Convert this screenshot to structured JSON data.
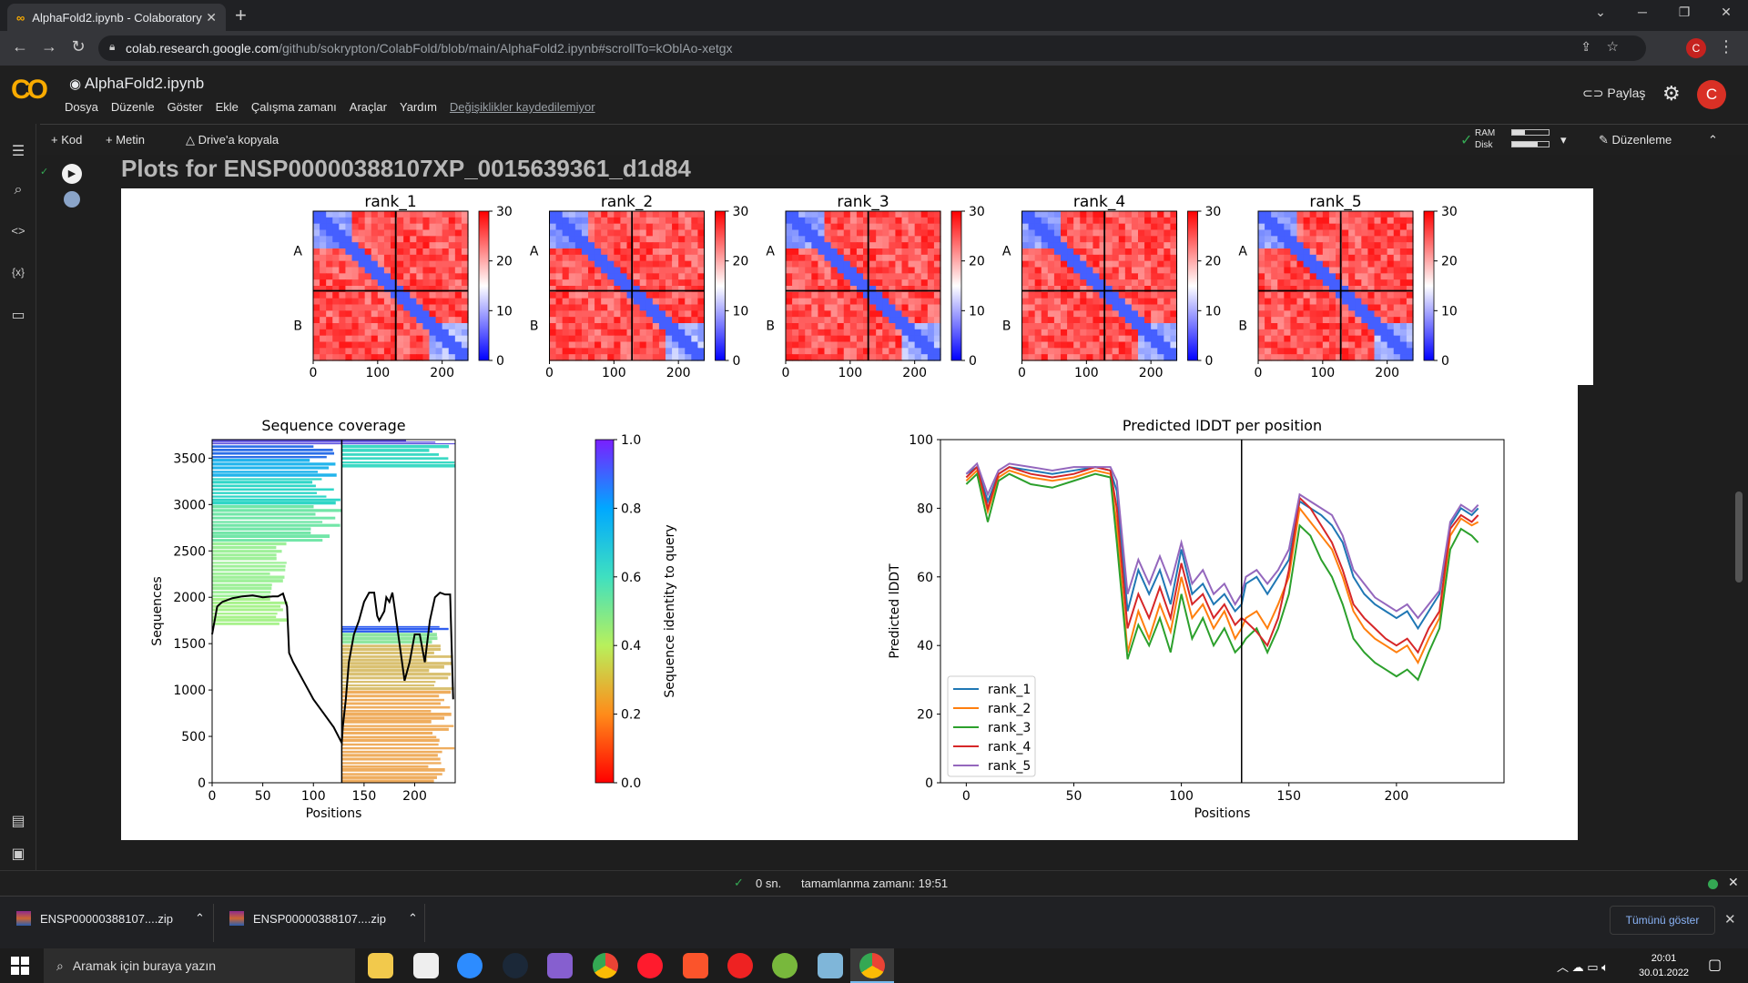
{
  "browser": {
    "tab_title": "AlphaFold2.ipynb - Colaboratory",
    "url_host": "colab.research.google.com",
    "url_path": "/github/sokrypton/ColabFold/blob/main/AlphaFold2.ipynb#scrollTo=kOblAo-xetgx",
    "profile_initial": "C"
  },
  "colab": {
    "logo": "CO",
    "notebook_title": "AlphaFold2.ipynb",
    "menu": [
      "Dosya",
      "Düzenle",
      "Göster",
      "Ekle",
      "Çalışma zamanı",
      "Araçlar",
      "Yardım"
    ],
    "unsaved_notice": "Değişiklikler kaydedilemiyor",
    "share_label": "Paylaş",
    "avatar_initial": "C"
  },
  "toolbar": {
    "add_code": "+ Kod",
    "add_text": "+ Metin",
    "copy_drive": "Drive'a kopyala",
    "ram_label": "RAM",
    "disk_label": "Disk",
    "ram_fraction": 0.35,
    "disk_fraction": 0.7,
    "edit_mode": "Düzenleme"
  },
  "cell": {
    "heading": "Plots for ENSP00000388107XP_0015639361_d1d84"
  },
  "colors": {
    "rank_1": "#1f77b4",
    "rank_2": "#ff7f0e",
    "rank_3": "#2ca02c",
    "rank_4": "#d62728",
    "rank_5": "#9467bd"
  },
  "chart_data": [
    {
      "type": "heatmap",
      "title": "rank_1",
      "ytick_labels": [
        "A",
        "B"
      ],
      "xticks": [
        0,
        100,
        200
      ],
      "colorbar_ticks": [
        0,
        10,
        20,
        30
      ],
      "colorbar_range": [
        0,
        30
      ],
      "xlim": [
        0,
        240
      ]
    },
    {
      "type": "heatmap",
      "title": "rank_2",
      "ytick_labels": [
        "A",
        "B"
      ],
      "xticks": [
        0,
        100,
        200
      ],
      "colorbar_ticks": [
        0,
        10,
        20,
        30
      ],
      "colorbar_range": [
        0,
        30
      ],
      "xlim": [
        0,
        240
      ]
    },
    {
      "type": "heatmap",
      "title": "rank_3",
      "ytick_labels": [
        "A",
        "B"
      ],
      "xticks": [
        0,
        100,
        200
      ],
      "colorbar_ticks": [
        0,
        10,
        20,
        30
      ],
      "colorbar_range": [
        0,
        30
      ],
      "xlim": [
        0,
        240
      ]
    },
    {
      "type": "heatmap",
      "title": "rank_4",
      "ytick_labels": [
        "A",
        "B"
      ],
      "xticks": [
        0,
        100,
        200
      ],
      "colorbar_ticks": [
        0,
        10,
        20,
        30
      ],
      "colorbar_range": [
        0,
        30
      ],
      "xlim": [
        0,
        240
      ]
    },
    {
      "type": "heatmap",
      "title": "rank_5",
      "ytick_labels": [
        "A",
        "B"
      ],
      "xticks": [
        0,
        100,
        200
      ],
      "colorbar_ticks": [
        0,
        10,
        20,
        30
      ],
      "colorbar_range": [
        0,
        30
      ],
      "xlim": [
        0,
        240
      ]
    },
    {
      "type": "heatmap",
      "title": "Sequence coverage",
      "xlabel": "Positions",
      "ylabel": "Sequences",
      "xlim": [
        0,
        240
      ],
      "ylim": [
        0,
        3700
      ],
      "xticks": [
        0,
        50,
        100,
        150,
        200
      ],
      "yticks": [
        0,
        500,
        1000,
        1500,
        2000,
        2500,
        3000,
        3500
      ],
      "colorbar_label": "Sequence identity to query",
      "colorbar_ticks": [
        0.0,
        0.2,
        0.4,
        0.6,
        0.8,
        1.0
      ],
      "chain_boundary": 128,
      "coverage_line": {
        "x": [
          0,
          5,
          10,
          20,
          30,
          40,
          50,
          60,
          65,
          70,
          74,
          76,
          80,
          90,
          100,
          110,
          120,
          128,
          129,
          132,
          135,
          140,
          145,
          150,
          155,
          160,
          163,
          165,
          170,
          172,
          175,
          178,
          180,
          185,
          190,
          195,
          200,
          205,
          210,
          215,
          220,
          225,
          230,
          235,
          238
        ],
        "y": [
          1600,
          1900,
          1950,
          1990,
          2010,
          2020,
          2000,
          2010,
          2010,
          2040,
          1900,
          1400,
          1300,
          1100,
          900,
          750,
          600,
          430,
          600,
          900,
          1300,
          1600,
          1750,
          1950,
          2050,
          2050,
          1800,
          1750,
          1850,
          2000,
          1950,
          2050,
          1900,
          1500,
          1100,
          1300,
          1600,
          1600,
          1300,
          1750,
          2000,
          2050,
          2030,
          2030,
          900
        ]
      }
    },
    {
      "type": "line",
      "title": "Predicted lDDT per position",
      "xlabel": "Positions",
      "ylabel": "Predicted lDDT",
      "xlim": [
        -12,
        250
      ],
      "ylim": [
        0,
        100
      ],
      "xticks": [
        0,
        50,
        100,
        150,
        200
      ],
      "yticks": [
        0,
        20,
        40,
        60,
        80,
        100
      ],
      "chain_boundary": 128,
      "legend_loc": "lower left",
      "x": [
        0,
        5,
        10,
        15,
        20,
        30,
        40,
        50,
        60,
        67,
        70,
        75,
        80,
        85,
        90,
        95,
        100,
        105,
        110,
        115,
        120,
        125,
        128,
        130,
        135,
        140,
        145,
        150,
        155,
        160,
        165,
        170,
        175,
        180,
        185,
        190,
        195,
        200,
        205,
        210,
        215,
        220,
        225,
        230,
        235,
        238
      ],
      "series": [
        {
          "name": "rank_1",
          "values": [
            90,
            92,
            82,
            90,
            92,
            91,
            90,
            91,
            92,
            91,
            85,
            50,
            62,
            55,
            62,
            52,
            68,
            55,
            58,
            52,
            55,
            50,
            52,
            58,
            60,
            55,
            60,
            65,
            82,
            80,
            78,
            75,
            70,
            60,
            55,
            52,
            50,
            48,
            50,
            45,
            50,
            55,
            75,
            80,
            78,
            80
          ]
        },
        {
          "name": "rank_2",
          "values": [
            88,
            91,
            79,
            89,
            91,
            89,
            88,
            89,
            91,
            90,
            75,
            38,
            50,
            42,
            52,
            44,
            60,
            48,
            52,
            45,
            50,
            42,
            45,
            48,
            50,
            45,
            52,
            60,
            80,
            76,
            72,
            68,
            60,
            50,
            45,
            42,
            40,
            38,
            40,
            35,
            42,
            48,
            72,
            77,
            75,
            76
          ]
        },
        {
          "name": "rank_3",
          "values": [
            87,
            90,
            76,
            88,
            90,
            87,
            86,
            88,
            90,
            89,
            70,
            36,
            46,
            40,
            48,
            38,
            55,
            42,
            48,
            40,
            45,
            38,
            40,
            42,
            45,
            38,
            45,
            55,
            75,
            72,
            65,
            60,
            52,
            42,
            38,
            35,
            33,
            31,
            33,
            30,
            38,
            45,
            68,
            74,
            72,
            70
          ]
        },
        {
          "name": "rank_4",
          "values": [
            89,
            92,
            80,
            90,
            92,
            90,
            89,
            90,
            92,
            91,
            80,
            45,
            55,
            48,
            57,
            48,
            64,
            52,
            55,
            48,
            52,
            46,
            48,
            47,
            44,
            40,
            48,
            62,
            83,
            80,
            75,
            70,
            62,
            52,
            48,
            45,
            42,
            40,
            42,
            38,
            45,
            50,
            74,
            78,
            76,
            78
          ]
        },
        {
          "name": "rank_5",
          "values": [
            90,
            93,
            84,
            91,
            93,
            92,
            91,
            92,
            92,
            92,
            88,
            55,
            65,
            58,
            66,
            58,
            70,
            58,
            62,
            55,
            58,
            52,
            55,
            60,
            62,
            58,
            62,
            68,
            84,
            82,
            80,
            78,
            72,
            62,
            58,
            54,
            52,
            50,
            52,
            48,
            52,
            56,
            76,
            81,
            79,
            81
          ]
        }
      ]
    }
  ],
  "rail": {
    "icons": [
      "toc-icon",
      "search-icon",
      "code-icon",
      "variables-icon",
      "folder-icon",
      "command-palette-icon",
      "terminal-icon"
    ]
  },
  "status": {
    "elapsed": "0 sn.",
    "completed": "tamamlanma zamanı: 19:51"
  },
  "downloads": {
    "items": [
      {
        "name": "ENSP00000388107....zip"
      },
      {
        "name": "ENSP00000388107....zip"
      }
    ],
    "show_all": "Tümünü göster"
  },
  "taskbar": {
    "search_placeholder": "Aramak için buraya yazın",
    "time": "20:01",
    "date": "30.01.2022"
  }
}
